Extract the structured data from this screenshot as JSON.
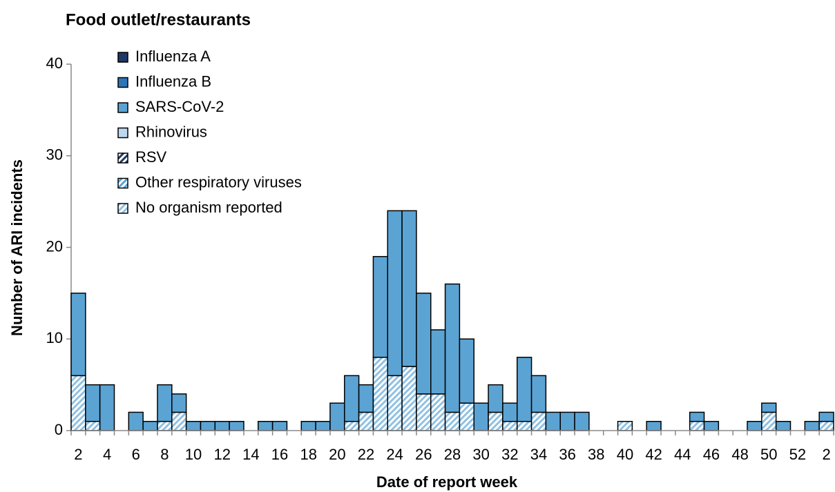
{
  "chart_data": {
    "type": "stacked_bar",
    "title": "Food outlet/restaurants",
    "xlabel": "Date of report week",
    "ylabel": "Number of ARI incidents",
    "categories": [
      "2",
      null,
      "4",
      null,
      "6",
      null,
      "8",
      null,
      "10",
      null,
      "12",
      null,
      "14",
      null,
      "16",
      null,
      "18",
      null,
      "20",
      null,
      "22",
      null,
      "24",
      null,
      "26",
      null,
      "28",
      null,
      "30",
      null,
      "32",
      null,
      "34",
      null,
      "36",
      null,
      "38",
      null,
      "40",
      null,
      "42",
      null,
      "44",
      null,
      "46",
      null,
      "48",
      null,
      "50",
      null,
      "52",
      null,
      "2"
    ],
    "series": [
      {
        "name": "Influenza A",
        "color": "#1f3864",
        "values": [
          0,
          0,
          0,
          0,
          0,
          0,
          0,
          0,
          0,
          0,
          0,
          0,
          0,
          0,
          0,
          0,
          0,
          0,
          0,
          0,
          0,
          0,
          0,
          0,
          0,
          0,
          0,
          0,
          0,
          0,
          0,
          0,
          0,
          0,
          0,
          0,
          0,
          0,
          0,
          0,
          0,
          0,
          0,
          0,
          0,
          0,
          0,
          0,
          0,
          0,
          0,
          0,
          0
        ]
      },
      {
        "name": "Influenza B",
        "color": "#2e75b6",
        "values": [
          0,
          0,
          0,
          0,
          0,
          0,
          0,
          0,
          0,
          0,
          0,
          0,
          0,
          0,
          0,
          0,
          0,
          0,
          0,
          0,
          0,
          0,
          0,
          0,
          0,
          0,
          0,
          0,
          0,
          0,
          0,
          0,
          0,
          0,
          0,
          0,
          0,
          0,
          0,
          0,
          0,
          0,
          0,
          0,
          0,
          0,
          0,
          0,
          0,
          0,
          0,
          0,
          0
        ]
      },
      {
        "name": "SARS-CoV-2",
        "color": "#5ba3d3",
        "values": [
          9,
          4,
          5,
          0,
          2,
          1,
          4,
          2,
          1,
          1,
          1,
          1,
          0,
          1,
          1,
          0,
          1,
          1,
          3,
          5,
          3,
          11,
          18,
          17,
          11,
          7,
          14,
          7,
          3,
          3,
          2,
          7,
          4,
          2,
          2,
          2,
          0,
          0,
          0,
          0,
          1,
          0,
          0,
          1,
          1,
          0,
          0,
          1,
          1,
          1,
          0,
          1,
          1
        ]
      },
      {
        "name": "Rhinovirus",
        "color": "#bdd7ee",
        "values": [
          0,
          0,
          0,
          0,
          0,
          0,
          0,
          0,
          0,
          0,
          0,
          0,
          0,
          0,
          0,
          0,
          0,
          0,
          0,
          0,
          0,
          0,
          0,
          0,
          0,
          0,
          0,
          0,
          0,
          0,
          0,
          0,
          0,
          0,
          0,
          0,
          0,
          0,
          0,
          0,
          0,
          0,
          0,
          0,
          0,
          0,
          0,
          0,
          0,
          0,
          0,
          0,
          0
        ]
      },
      {
        "name": "RSV",
        "color": "#1f3864",
        "hatch": true,
        "values": [
          0,
          0,
          0,
          0,
          0,
          0,
          0,
          0,
          0,
          0,
          0,
          0,
          0,
          0,
          0,
          0,
          0,
          0,
          0,
          0,
          0,
          0,
          0,
          0,
          0,
          0,
          0,
          0,
          0,
          0,
          0,
          0,
          0,
          0,
          0,
          0,
          0,
          0,
          0,
          0,
          0,
          0,
          0,
          0,
          0,
          0,
          0,
          0,
          0,
          0,
          0,
          0,
          0
        ]
      },
      {
        "name": "Other respiratory viruses",
        "color": "#5ba3d3",
        "hatch": true,
        "values": [
          0,
          0,
          0,
          0,
          0,
          0,
          0,
          0,
          0,
          0,
          0,
          0,
          0,
          0,
          0,
          0,
          0,
          0,
          0,
          0,
          0,
          0,
          0,
          0,
          0,
          0,
          0,
          0,
          0,
          0,
          0,
          0,
          0,
          0,
          0,
          0,
          0,
          0,
          0,
          0,
          0,
          0,
          0,
          0,
          0,
          0,
          0,
          0,
          0,
          0,
          0,
          0,
          0
        ]
      },
      {
        "name": "No organism reported",
        "color": "#8fc1e3",
        "hatch": true,
        "values": [
          6,
          1,
          0,
          0,
          0,
          0,
          1,
          2,
          0,
          0,
          0,
          0,
          0,
          0,
          0,
          0,
          0,
          0,
          0,
          1,
          2,
          8,
          6,
          7,
          4,
          4,
          2,
          3,
          0,
          2,
          1,
          1,
          2,
          0,
          0,
          0,
          0,
          0,
          1,
          0,
          0,
          0,
          0,
          1,
          0,
          0,
          0,
          0,
          2,
          0,
          0,
          0,
          1
        ]
      }
    ],
    "ylim": [
      0,
      40
    ],
    "yticks": [
      0,
      10,
      20,
      30,
      40
    ]
  }
}
